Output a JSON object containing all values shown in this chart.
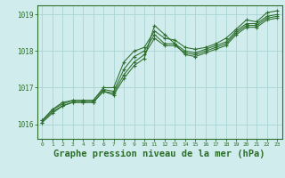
{
  "background_color": "#d0ecec",
  "grid_color": "#a8d4d4",
  "line_color": "#2d6e2d",
  "title": "Graphe pression niveau de la mer (hPa)",
  "title_fontsize": 7.5,
  "xlim": [
    -0.5,
    23.5
  ],
  "ylim": [
    1015.6,
    1019.25
  ],
  "yticks": [
    1016,
    1017,
    1018,
    1019
  ],
  "xticks": [
    0,
    1,
    2,
    3,
    4,
    5,
    6,
    7,
    8,
    9,
    10,
    11,
    12,
    13,
    14,
    15,
    16,
    17,
    18,
    19,
    20,
    21,
    22,
    23
  ],
  "series": [
    [
      1016.1,
      1016.4,
      1016.6,
      1016.65,
      1016.65,
      1016.65,
      1017.0,
      1017.0,
      1017.7,
      1018.0,
      1018.1,
      1018.55,
      1018.35,
      1018.3,
      1018.1,
      1018.05,
      1018.1,
      1018.2,
      1018.35,
      1018.6,
      1018.85,
      1018.8,
      1019.05,
      1019.1
    ],
    [
      1016.1,
      1016.4,
      1016.55,
      1016.65,
      1016.65,
      1016.65,
      1016.95,
      1016.9,
      1017.5,
      1017.85,
      1018.0,
      1018.45,
      1018.2,
      1018.2,
      1018.0,
      1017.95,
      1018.05,
      1018.15,
      1018.25,
      1018.55,
      1018.75,
      1018.75,
      1018.95,
      1019.0
    ],
    [
      1016.05,
      1016.35,
      1016.5,
      1016.6,
      1016.6,
      1016.6,
      1016.9,
      1016.85,
      1017.35,
      1017.7,
      1017.9,
      1018.35,
      1018.15,
      1018.15,
      1017.95,
      1017.9,
      1018.0,
      1018.1,
      1018.2,
      1018.5,
      1018.7,
      1018.7,
      1018.9,
      1018.95
    ],
    [
      1016.05,
      1016.3,
      1016.5,
      1016.6,
      1016.6,
      1016.6,
      1016.9,
      1016.8,
      1017.25,
      1017.6,
      1017.8,
      1018.7,
      1018.45,
      1018.2,
      1017.9,
      1017.85,
      1017.95,
      1018.05,
      1018.15,
      1018.45,
      1018.65,
      1018.65,
      1018.85,
      1018.9
    ]
  ]
}
